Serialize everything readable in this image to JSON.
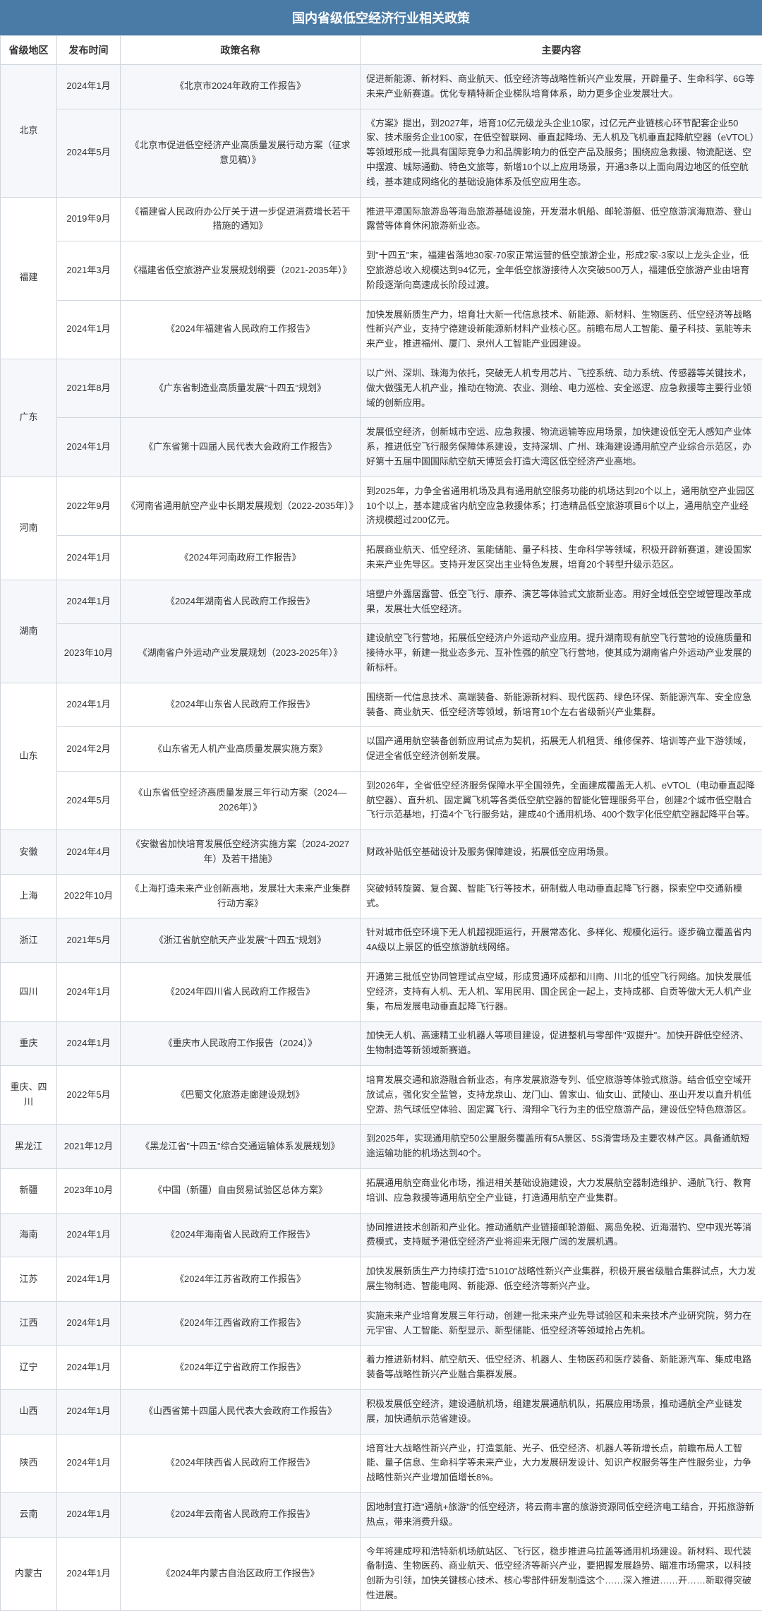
{
  "title": "国内省级低空经济行业相关政策",
  "headers": [
    "省级地区",
    "发布时间",
    "政策名称",
    "主要内容"
  ],
  "colors": {
    "header_bg": "#4a7ba6",
    "header_text": "#ffffff",
    "border": "#d0d7de",
    "row_odd": "#f5f7fa",
    "row_even": "#ffffff",
    "text": "#333333"
  },
  "rows": [
    {
      "region": "北京",
      "span": 2,
      "date": "2024年1月",
      "policy": "《北京市2024年政府工作报告》",
      "content": "促进新能源、新材料、商业航天、低空经济等战略性新兴产业发展，开辟量子、生命科学、6G等未来产业新赛道。优化专精特新企业梯队培育体系，助力更多企业发展壮大。"
    },
    {
      "region": "",
      "span": 0,
      "date": "2024年5月",
      "policy": "《北京市促进低空经济产业高质量发展行动方案（征求意见稿）》",
      "content": "《方案》提出，到2027年，培育10亿元级龙头企业10家，过亿元产业链核心环节配套企业50家、技术服务企业100家，在低空智联网、垂直起降场、无人机及飞机垂直起降航空器（eVTOL）等领域形成一批具有国际竞争力和品牌影响力的低空产品及服务；围绕应急救援、物流配送、空中摆渡、城际通勤、特色文旅等，新增10个以上应用场景，开通3条以上面向周边地区的低空航线，基本建成网络化的基础设施体系及低空应用生态。"
    },
    {
      "region": "福建",
      "span": 3,
      "date": "2019年9月",
      "policy": "《福建省人民政府办公厅关于进一步促进消费增长若干措施的通知》",
      "content": "推进平潭国际旅游岛等海岛旅游基础设施，开发潜水帆船、邮轮游艇、低空旅游滨海旅游、登山露营等体育休闲旅游新业态。"
    },
    {
      "region": "",
      "span": 0,
      "date": "2021年3月",
      "policy": "《福建省低空旅游产业发展规划纲要（2021-2035年）》",
      "content": "到\"十四五\"末，福建省落地30家-70家正常运营的低空旅游企业，形成2家-3家以上龙头企业，低空旅游总收入规模达到94亿元，全年低空旅游接待人次突破500万人，福建低空旅游产业由培育阶段逐渐向高速成长阶段过渡。"
    },
    {
      "region": "",
      "span": 0,
      "date": "2024年1月",
      "policy": "《2024年福建省人民政府工作报告》",
      "content": "加快发展新质生产力，培育壮大新一代信息技术、新能源、新材料、生物医药、低空经济等战略性新兴产业，支持宁德建设新能源新材料产业核心区。前瞻布局人工智能、量子科技、氢能等未来产业，推进福州、厦门、泉州人工智能产业园建设。"
    },
    {
      "region": "广东",
      "span": 2,
      "date": "2021年8月",
      "policy": "《广东省制造业高质量发展\"十四五\"规划》",
      "content": "以广州、深圳、珠海为依托，突破无人机专用芯片、飞控系统、动力系统、传感器等关键技术，做大做强无人机产业，推动在物流、农业、测绘、电力巡检、安全巡逻、应急救援等主要行业领域的创新应用。"
    },
    {
      "region": "",
      "span": 0,
      "date": "2024年1月",
      "policy": "《广东省第十四届人民代表大会政府工作报告》",
      "content": "发展低空经济，创新城市空运、应急救援、物流运输等应用场景，加快建设低空无人感知产业体系，推进低空飞行服务保障体系建设，支持深圳、广州、珠海建设通用航空产业综合示范区，办好第十五届中国国际航空航天博览会打造大湾区低空经济产业高地。"
    },
    {
      "region": "河南",
      "span": 2,
      "date": "2022年9月",
      "policy": "《河南省通用航空产业中长期发展规划（2022-2035年）》",
      "content": "到2025年，力争全省通用机场及具有通用航空服务功能的机场达到20个以上，通用航空产业园区10个以上，基本建成省内航空应急救援体系；打造精品低空旅游项目6个以上，通用航空产业经济规模超过200亿元。"
    },
    {
      "region": "",
      "span": 0,
      "date": "2024年1月",
      "policy": "《2024年河南政府工作报告》",
      "content": "拓展商业航天、低空经济、氢能储能、量子科技、生命科学等领域，积极开辟新赛道，建设国家未来产业先导区。支持开发区突出主业特色发展，培育20个转型升级示范区。"
    },
    {
      "region": "湖南",
      "span": 2,
      "date": "2024年1月",
      "policy": "《2024年湖南省人民政府工作报告》",
      "content": "培塑户外露居露营、低空飞行、康养、演艺等体验式文旅新业态。用好全域低空空域管理改革成果，发展壮大低空经济。"
    },
    {
      "region": "",
      "span": 0,
      "date": "2023年10月",
      "policy": "《湖南省户外运动产业发展规划（2023-2025年）》",
      "content": "建设航空飞行营地，拓展低空经济户外运动产业应用。提升湖南现有航空飞行营地的设施质量和接待水平，新建一批业态多元、互补性强的航空飞行营地，使其成为湖南省户外运动产业发展的新标杆。"
    },
    {
      "region": "山东",
      "span": 3,
      "date": "2024年1月",
      "policy": "《2024年山东省人民政府工作报告》",
      "content": "围绕新一代信息技术、高端装备、新能源新材料、现代医药、绿色环保、新能源汽车、安全应急装备、商业航天、低空经济等领域，新培育10个左右省级新兴产业集群。"
    },
    {
      "region": "",
      "span": 0,
      "date": "2024年2月",
      "policy": "《山东省无人机产业高质量发展实施方案》",
      "content": "以国产通用航空装备创新应用试点为契机，拓展无人机租赁、维修保养、培训等产业下游领域，促进全省低空经济创新发展。"
    },
    {
      "region": "",
      "span": 0,
      "date": "2024年5月",
      "policy": "《山东省低空经济高质量发展三年行动方案（2024—2026年）》",
      "content": "到2026年，全省低空经济服务保障水平全国领先，全面建成覆盖无人机、eVTOL（电动垂直起降航空器）、直升机、固定翼飞机等各类低空航空器的智能化管理服务平台，创建2个城市低空融合飞行示范基地，打造4个飞行服务站，建成40个通用机场、400个数字化低空航空器起降平台等。"
    },
    {
      "region": "安徽",
      "span": 1,
      "date": "2024年4月",
      "policy": "《安徽省加快培育发展低空经济实施方案（2024-2027年）及若干措施》",
      "content": "财政补贴低空基础设计及服务保障建设，拓展低空应用场景。"
    },
    {
      "region": "上海",
      "span": 1,
      "date": "2022年10月",
      "policy": "《上海打造未来产业创新高地，发展壮大未来产业集群行动方案》",
      "content": "突破倾转旋翼、复合翼、智能飞行等技术，研制载人电动垂直起降飞行器，探索空中交通新模式。"
    },
    {
      "region": "浙江",
      "span": 1,
      "date": "2021年5月",
      "policy": "《浙江省航空航天产业发展\"十四五\"规划》",
      "content": "针对城市低空环境下无人机超视距运行，开展常态化、多样化、规模化运行。逐步确立覆盖省内4A级以上景区的低空旅游航线网络。"
    },
    {
      "region": "四川",
      "span": 1,
      "date": "2024年1月",
      "policy": "《2024年四川省人民政府工作报告》",
      "content": "开通第三批低空协同管理试点空域，形成贯通环成都和川南、川北的低空飞行网络。加快发展低空经济，支持有人机、无人机、军用民用、国企民企一起上，支持成都、自贡等做大无人机产业集，布局发展电动垂直起降飞行器。"
    },
    {
      "region": "重庆",
      "span": 1,
      "date": "2024年1月",
      "policy": "《重庆市人民政府工作报告（2024）》",
      "content": "加快无人机、高速精工业机器人等项目建设，促进整机与零部件\"双提升\"。加快开辟低空经济、生物制造等新领域新赛道。"
    },
    {
      "region": "重庆、四川",
      "span": 1,
      "date": "2022年5月",
      "policy": "《巴蜀文化旅游走廊建设规划》",
      "content": "培育发展交通和旅游融合新业态，有序发展旅游专列、低空旅游等体验式旅游。结合低空空域开放试点，强化安全监管，支持龙泉山、龙门山、曾家山、仙女山、武陵山、巫山开发以直升机低空游、热气球低空体验、固定翼飞行、滑翔伞飞行为主的低空旅游产品，建设低空特色旅游区。"
    },
    {
      "region": "黑龙江",
      "span": 1,
      "date": "2021年12月",
      "policy": "《黑龙江省\"十四五\"综合交通运输体系发展规划》",
      "content": "到2025年，实现通用航空50公里服务覆盖所有5A景区、5S滑雪场及主要农林产区。具备通航短途运输功能的机场达到40个。"
    },
    {
      "region": "新疆",
      "span": 1,
      "date": "2023年10月",
      "policy": "《中国（新疆）自由贸易试验区总体方案》",
      "content": "拓展通用航空商业化市场，推进相关基础设施建设，大力发展航空器制造维护、通航飞行、教育培训、应急救援等通用航空全产业链，打造通用航空产业集群。"
    },
    {
      "region": "海南",
      "span": 1,
      "date": "2024年1月",
      "policy": "《2024年海南省人民政府工作报告》",
      "content": "协同推进技术创新和产业化。推动通航产业链接邮轮游艇、离岛免税、近海潜钓、空中观光等消费模式，支持赋予港低空经济产业将迎来无限广阔的发展机遇。"
    },
    {
      "region": "江苏",
      "span": 1,
      "date": "2024年1月",
      "policy": "《2024年江苏省政府工作报告》",
      "content": "加快发展新质生产力持续打造\"51010\"战略性新兴产业集群，积极开展省级融合集群试点，大力发展生物制造、智能电网、新能源、低空经济等新兴产业。"
    },
    {
      "region": "江西",
      "span": 1,
      "date": "2024年1月",
      "policy": "《2024年江西省政府工作报告》",
      "content": "实施未来产业培育发展三年行动，创建一批未来产业先导试验区和未来技术产业研究院，努力在元宇宙、人工智能、新型显示、新型储能、低空经济等领域抢占先机。"
    },
    {
      "region": "辽宁",
      "span": 1,
      "date": "2024年1月",
      "policy": "《2024年辽宁省政府工作报告》",
      "content": "着力推进新材料、航空航天、低空经济、机器人、生物医药和医疗装备、新能源汽车、集成电路装备等战略性新兴产业融合集群发展。"
    },
    {
      "region": "山西",
      "span": 1,
      "date": "2024年1月",
      "policy": "《山西省第十四届人民代表大会政府工作报告》",
      "content": "积极发展低空经济，建设通航机场，组建发展通航机队，拓展应用场景，推动通航全产业链发展，加快通航示范省建设。"
    },
    {
      "region": "陕西",
      "span": 1,
      "date": "2024年1月",
      "policy": "《2024年陕西省人民政府工作报告》",
      "content": "培育壮大战略性新兴产业，打造氢能、光子、低空经济、机器人等新增长点，前瞻布局人工智能、量子信息、生命科学等未来产业，大力发展研发设计、知识产权服务等生产性服务业，力争战略性新兴产业增加值增长8%。"
    },
    {
      "region": "云南",
      "span": 1,
      "date": "2024年1月",
      "policy": "《2024年云南省人民政府工作报告》",
      "content": "因地制宜打造\"通航+旅游\"的低空经济，将云南丰富的旅游资源同低空经济电工结合，开拓旅游新热点，带来消费升级。"
    },
    {
      "region": "内蒙古",
      "span": 1,
      "date": "2024年1月",
      "policy": "《2024年内蒙古自治区政府工作报告》",
      "content": "今年将建成呼和浩特新机场航站区、飞行区，稳步推进乌拉盖等通用机场建设。新材料、现代装备制造、生物医药、商业航天、低空经济等新兴产业，要把握发展趋势、瞄准市场需求，以科技创新为引领，加快关键核心技术、核心零部件研发制造这个……深入推进……开……新取得突破性进展。"
    }
  ]
}
